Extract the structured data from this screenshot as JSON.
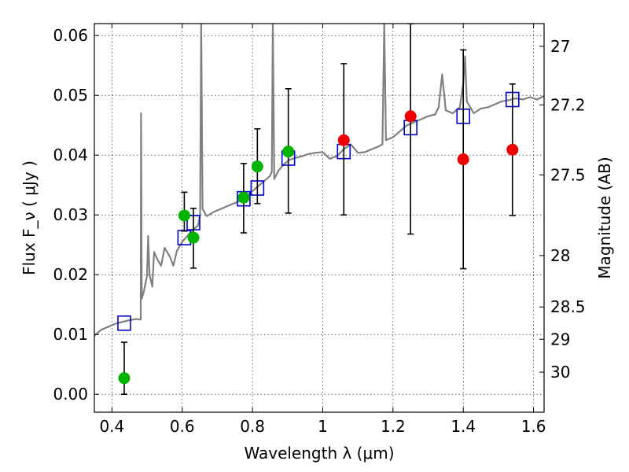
{
  "chart_data": {
    "type": "scatter",
    "xlabel": "Wavelength  λ (μm)",
    "ylabel": "Flux  F_ν  ( μJy )",
    "y2label": "Magnitude (AB)",
    "xlim": [
      0.35,
      1.63
    ],
    "ylim": [
      -0.003,
      0.062
    ],
    "grid": true,
    "x_ticks": [
      0.4,
      0.6,
      0.8,
      1.0,
      1.2,
      1.4,
      1.6
    ],
    "x_tick_labels": [
      "0.4",
      "0.6",
      "0.8",
      "1",
      "1.2",
      "1.4",
      "1.6"
    ],
    "y_ticks": [
      0.0,
      0.01,
      0.02,
      0.03,
      0.04,
      0.05,
      0.06
    ],
    "y_tick_labels": [
      "0.00",
      "0.01",
      "0.02",
      "0.03",
      "0.04",
      "0.05",
      "0.06"
    ],
    "y2_ticks": [
      {
        "label": "27",
        "flux": 0.0582
      },
      {
        "label": "27.2",
        "flux": 0.0484
      },
      {
        "label": "27.5",
        "flux": 0.0367
      },
      {
        "label": "28",
        "flux": 0.0232
      },
      {
        "label": "28.5",
        "flux": 0.0146
      },
      {
        "label": "29",
        "flux": 0.0092
      },
      {
        "label": "30",
        "flux": 0.0037
      }
    ],
    "colors": {
      "sed": "#808080",
      "model_box": "#0000cc",
      "green_point": "#00b400",
      "red_point": "#ee0000",
      "error_bar": "#000000"
    },
    "model_photometry": [
      {
        "x": 0.435,
        "y": 0.0119
      },
      {
        "x": 0.606,
        "y": 0.0262
      },
      {
        "x": 0.632,
        "y": 0.0287
      },
      {
        "x": 0.775,
        "y": 0.0327
      },
      {
        "x": 0.814,
        "y": 0.0345
      },
      {
        "x": 0.902,
        "y": 0.0395
      },
      {
        "x": 1.06,
        "y": 0.0406
      },
      {
        "x": 1.25,
        "y": 0.0446
      },
      {
        "x": 1.4,
        "y": 0.0465
      },
      {
        "x": 1.54,
        "y": 0.0493
      }
    ],
    "observed_points": [
      {
        "x": 0.435,
        "y": 0.0027,
        "err_low": 0.0,
        "err_high": 0.0087,
        "group": "green"
      },
      {
        "x": 0.606,
        "y": 0.0299,
        "err_low": 0.0273,
        "err_high": 0.0338,
        "group": "green"
      },
      {
        "x": 0.632,
        "y": 0.0262,
        "err_low": 0.0211,
        "err_high": 0.0311,
        "group": "green"
      },
      {
        "x": 0.775,
        "y": 0.0329,
        "err_low": 0.027,
        "err_high": 0.0386,
        "group": "green"
      },
      {
        "x": 0.814,
        "y": 0.0381,
        "err_low": 0.0319,
        "err_high": 0.0444,
        "group": "green"
      },
      {
        "x": 0.902,
        "y": 0.0406,
        "err_low": 0.0303,
        "err_high": 0.0511,
        "group": "green"
      },
      {
        "x": 1.06,
        "y": 0.0425,
        "err_low": 0.03,
        "err_high": 0.0553,
        "group": "red"
      },
      {
        "x": 1.25,
        "y": 0.0465,
        "err_low": 0.0268,
        "err_high": 0.062,
        "group": "red"
      },
      {
        "x": 1.4,
        "y": 0.0393,
        "err_low": 0.021,
        "err_high": 0.0576,
        "group": "red"
      },
      {
        "x": 1.54,
        "y": 0.0409,
        "err_low": 0.0299,
        "err_high": 0.0519,
        "group": "red"
      }
    ],
    "sed": [
      [
        0.35,
        0.0098
      ],
      [
        0.37,
        0.0108
      ],
      [
        0.39,
        0.0113
      ],
      [
        0.41,
        0.0118
      ],
      [
        0.43,
        0.0121
      ],
      [
        0.45,
        0.0124
      ],
      [
        0.47,
        0.0126
      ],
      [
        0.478,
        0.0125
      ],
      [
        0.482,
        0.0125
      ],
      [
        0.483,
        0.047
      ],
      [
        0.485,
        0.016
      ],
      [
        0.49,
        0.017
      ],
      [
        0.5,
        0.0198
      ],
      [
        0.503,
        0.0265
      ],
      [
        0.507,
        0.02
      ],
      [
        0.515,
        0.018
      ],
      [
        0.52,
        0.0238
      ],
      [
        0.53,
        0.0225
      ],
      [
        0.54,
        0.0215
      ],
      [
        0.55,
        0.0245
      ],
      [
        0.565,
        0.023
      ],
      [
        0.575,
        0.0215
      ],
      [
        0.585,
        0.024
      ],
      [
        0.6,
        0.0255
      ],
      [
        0.615,
        0.0265
      ],
      [
        0.63,
        0.0275
      ],
      [
        0.645,
        0.0282
      ],
      [
        0.651,
        0.03
      ],
      [
        0.654,
        0.062
      ],
      [
        0.658,
        0.031
      ],
      [
        0.67,
        0.0298
      ],
      [
        0.69,
        0.0305
      ],
      [
        0.71,
        0.031
      ],
      [
        0.73,
        0.0315
      ],
      [
        0.75,
        0.032
      ],
      [
        0.77,
        0.0325
      ],
      [
        0.79,
        0.0335
      ],
      [
        0.81,
        0.0345
      ],
      [
        0.83,
        0.0355
      ],
      [
        0.85,
        0.0365
      ],
      [
        0.855,
        0.0372
      ],
      [
        0.858,
        0.062
      ],
      [
        0.862,
        0.036
      ],
      [
        0.875,
        0.0375
      ],
      [
        0.89,
        0.0385
      ],
      [
        0.905,
        0.0392
      ],
      [
        0.92,
        0.0395
      ],
      [
        0.94,
        0.0398
      ],
      [
        0.96,
        0.0402
      ],
      [
        0.98,
        0.0404
      ],
      [
        1.0,
        0.0405
      ],
      [
        1.02,
        0.0394
      ],
      [
        1.04,
        0.0398
      ],
      [
        1.06,
        0.041
      ],
      [
        1.08,
        0.0418
      ],
      [
        1.1,
        0.0404
      ],
      [
        1.12,
        0.0405
      ],
      [
        1.14,
        0.041
      ],
      [
        1.16,
        0.0415
      ],
      [
        1.17,
        0.0418
      ],
      [
        1.175,
        0.062
      ],
      [
        1.18,
        0.0425
      ],
      [
        1.2,
        0.043
      ],
      [
        1.22,
        0.044
      ],
      [
        1.24,
        0.045
      ],
      [
        1.26,
        0.0455
      ],
      [
        1.28,
        0.046
      ],
      [
        1.3,
        0.0465
      ],
      [
        1.32,
        0.0468
      ],
      [
        1.33,
        0.048
      ],
      [
        1.34,
        0.0535
      ],
      [
        1.35,
        0.0475
      ],
      [
        1.37,
        0.047
      ],
      [
        1.39,
        0.048
      ],
      [
        1.4,
        0.052
      ],
      [
        1.405,
        0.0565
      ],
      [
        1.41,
        0.049
      ],
      [
        1.43,
        0.047
      ],
      [
        1.45,
        0.0478
      ],
      [
        1.47,
        0.048
      ],
      [
        1.49,
        0.0485
      ],
      [
        1.51,
        0.049
      ],
      [
        1.53,
        0.0492
      ],
      [
        1.55,
        0.0495
      ],
      [
        1.57,
        0.0493
      ],
      [
        1.59,
        0.0497
      ],
      [
        1.61,
        0.0493
      ],
      [
        1.63,
        0.0499
      ]
    ]
  }
}
